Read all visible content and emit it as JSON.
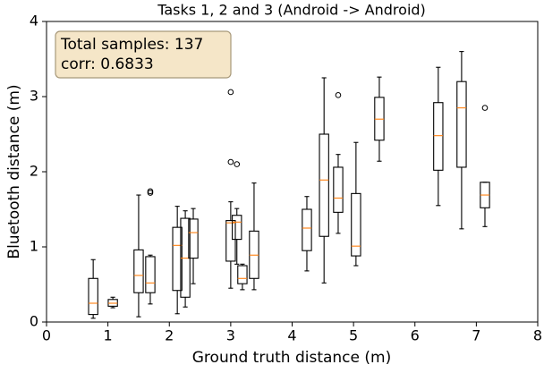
{
  "chart_data": {
    "type": "box",
    "title": "Tasks 1, 2 and 3 (Android -> Android)",
    "x_label": "Ground truth distance (m)",
    "y_label": "Bluetooth distance (m)",
    "annotation": [
      "Total samples: 137",
      "corr: 0.6833"
    ],
    "color": "#000000",
    "median_color": "#ff7f0e",
    "annotation_fill": "#f5e6c8",
    "annotation_edge": "#a8997a",
    "xlim": [
      0,
      8
    ],
    "ylim": [
      0,
      4
    ],
    "xticks": [
      0,
      1,
      2,
      3,
      4,
      5,
      6,
      7,
      8
    ],
    "yticks": [
      0,
      1,
      2,
      3,
      4
    ],
    "boxes": [
      {
        "x": 0.76,
        "whislo": 0.05,
        "q1": 0.1,
        "med": 0.25,
        "q3": 0.58,
        "whishi": 0.83,
        "fliers": []
      },
      {
        "x": 1.08,
        "whislo": 0.19,
        "q1": 0.21,
        "med": 0.25,
        "q3": 0.3,
        "whishi": 0.33,
        "fliers": []
      },
      {
        "x": 1.5,
        "whislo": 0.07,
        "q1": 0.39,
        "med": 0.62,
        "q3": 0.96,
        "whishi": 1.69,
        "fliers": []
      },
      {
        "x": 1.69,
        "whislo": 0.24,
        "q1": 0.39,
        "med": 0.52,
        "q3": 0.87,
        "whishi": 0.89,
        "fliers": [
          1.72,
          1.74
        ]
      },
      {
        "x": 2.13,
        "whislo": 0.11,
        "q1": 0.42,
        "med": 1.02,
        "q3": 1.26,
        "whishi": 1.54,
        "fliers": []
      },
      {
        "x": 2.26,
        "whislo": 0.2,
        "q1": 0.33,
        "med": 0.85,
        "q3": 1.38,
        "whishi": 1.48,
        "fliers": []
      },
      {
        "x": 2.39,
        "whislo": 0.51,
        "q1": 0.85,
        "med": 1.19,
        "q3": 1.37,
        "whishi": 1.51,
        "fliers": []
      },
      {
        "x": 3.0,
        "whislo": 0.45,
        "q1": 0.81,
        "med": 1.32,
        "q3": 1.35,
        "whishi": 1.6,
        "fliers": [
          3.06,
          2.13
        ]
      },
      {
        "x": 3.1,
        "whislo": 0.77,
        "q1": 1.1,
        "med": 1.33,
        "q3": 1.42,
        "whishi": 1.51,
        "fliers": [
          2.1
        ]
      },
      {
        "x": 3.19,
        "whislo": 0.43,
        "q1": 0.51,
        "med": 0.58,
        "q3": 0.75,
        "whishi": 0.77,
        "fliers": []
      },
      {
        "x": 3.38,
        "whislo": 0.43,
        "q1": 0.58,
        "med": 0.89,
        "q3": 1.21,
        "whishi": 1.85,
        "fliers": []
      },
      {
        "x": 4.24,
        "whislo": 0.68,
        "q1": 0.95,
        "med": 1.25,
        "q3": 1.5,
        "whishi": 1.67,
        "fliers": []
      },
      {
        "x": 4.52,
        "whislo": 0.52,
        "q1": 1.14,
        "med": 1.89,
        "q3": 2.5,
        "whishi": 3.25,
        "fliers": []
      },
      {
        "x": 4.75,
        "whislo": 1.18,
        "q1": 1.46,
        "med": 1.65,
        "q3": 2.06,
        "whishi": 2.23,
        "fliers": [
          3.02
        ]
      },
      {
        "x": 5.04,
        "whislo": 0.75,
        "q1": 0.88,
        "med": 1.01,
        "q3": 1.71,
        "whishi": 2.39,
        "fliers": []
      },
      {
        "x": 5.42,
        "whislo": 2.14,
        "q1": 2.42,
        "med": 2.7,
        "q3": 2.99,
        "whishi": 3.26,
        "fliers": []
      },
      {
        "x": 6.38,
        "whislo": 1.55,
        "q1": 2.02,
        "med": 2.48,
        "q3": 2.92,
        "whishi": 3.39,
        "fliers": []
      },
      {
        "x": 6.76,
        "whislo": 1.24,
        "q1": 2.06,
        "med": 2.85,
        "q3": 3.2,
        "whishi": 3.6,
        "fliers": []
      },
      {
        "x": 7.14,
        "whislo": 1.27,
        "q1": 1.52,
        "med": 1.69,
        "q3": 1.86,
        "whishi": 1.86,
        "fliers": [
          2.85
        ]
      }
    ]
  }
}
